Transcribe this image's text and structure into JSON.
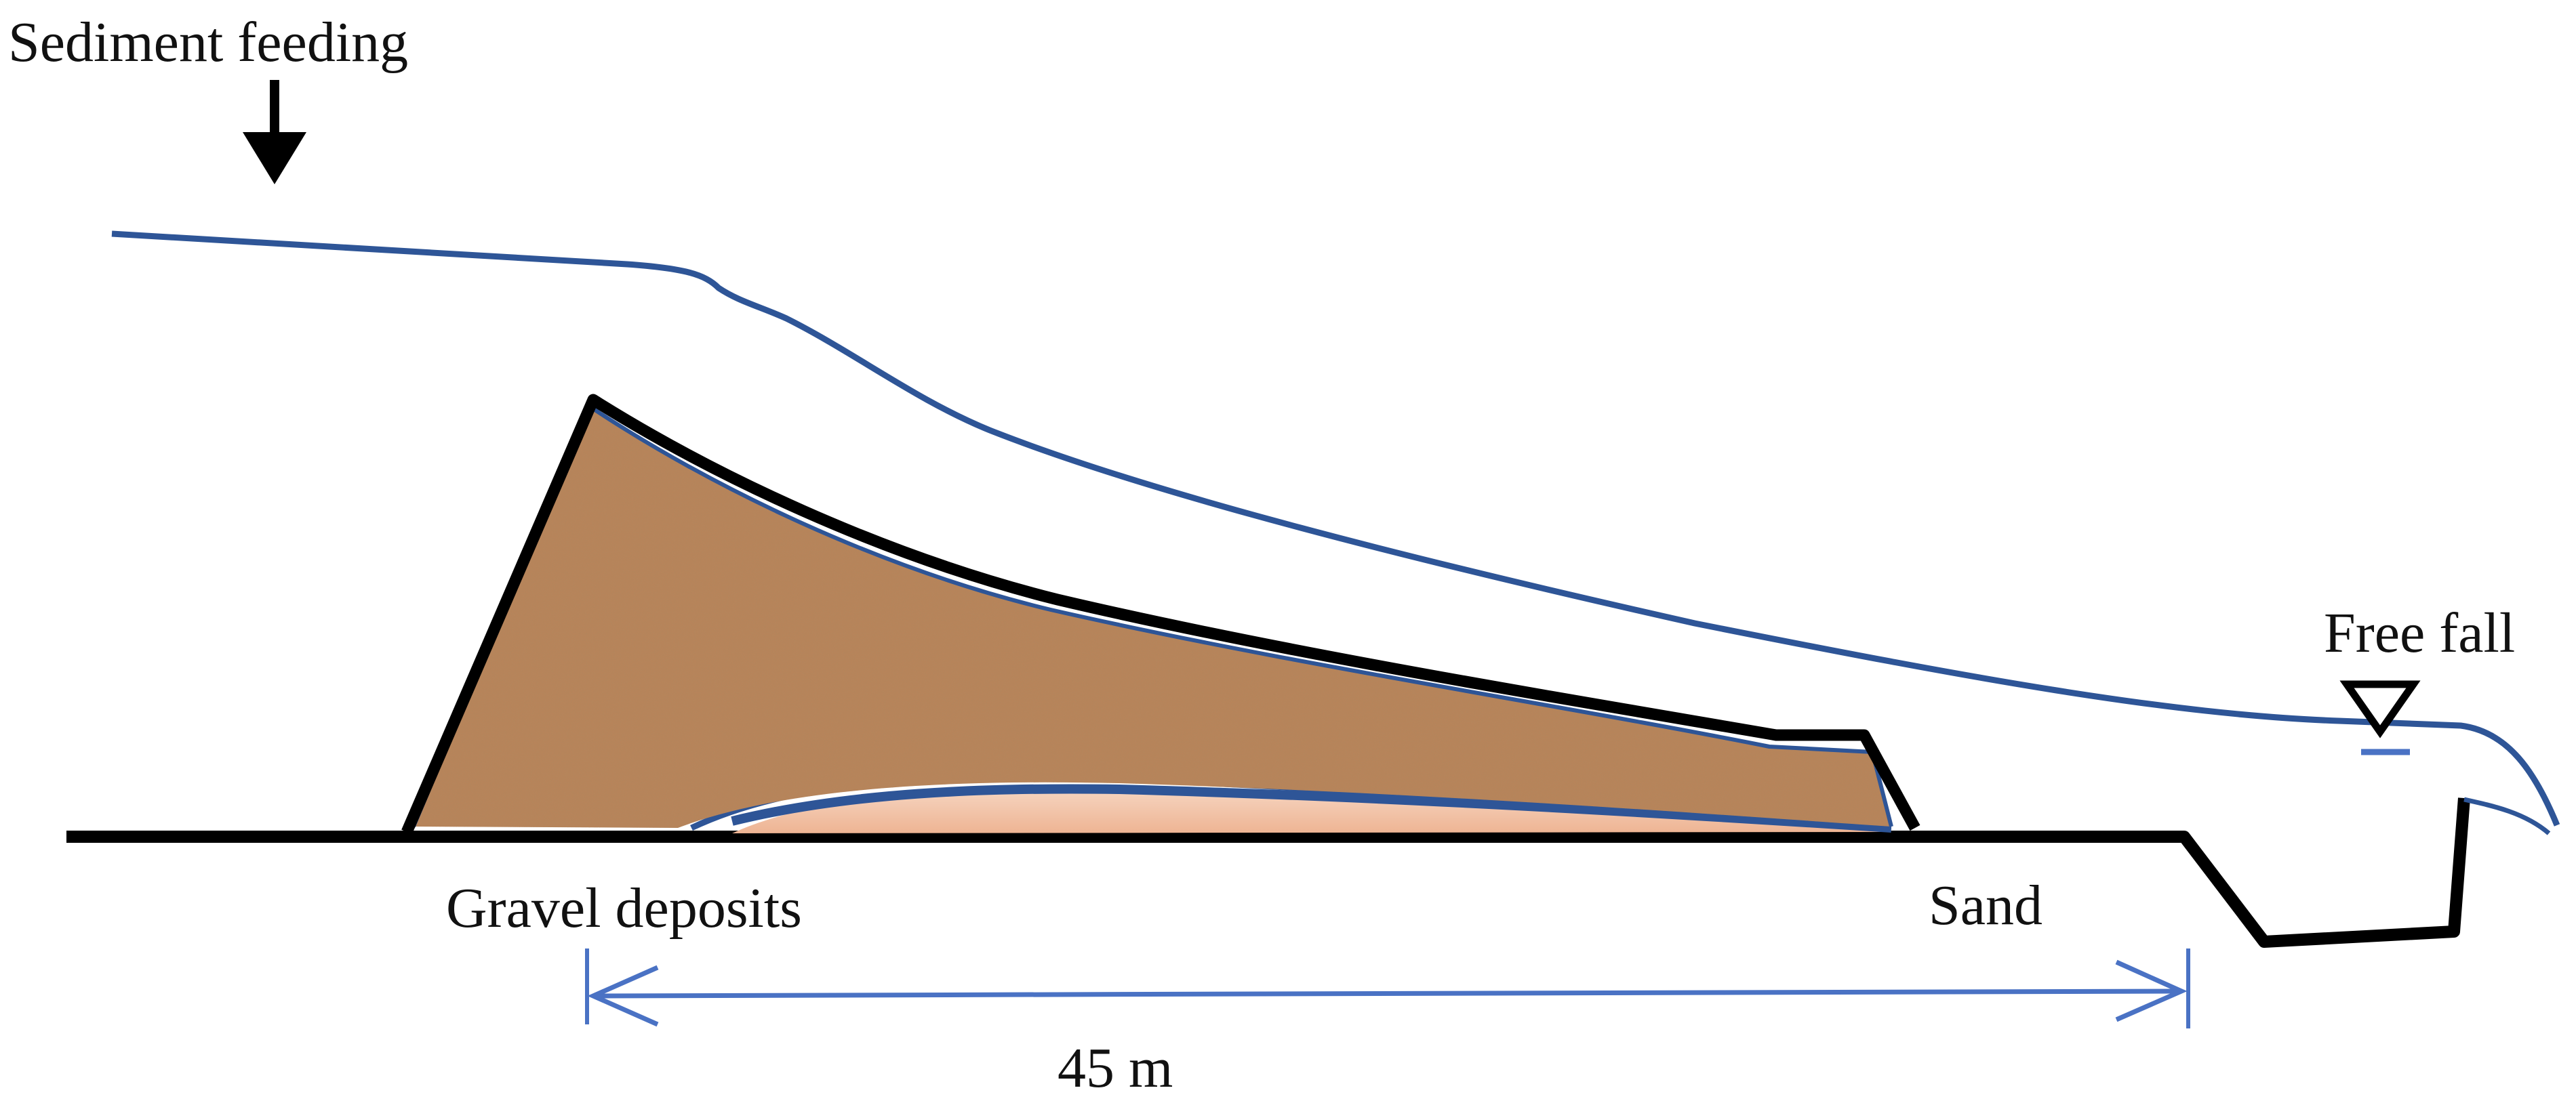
{
  "labels": {
    "sediment_feeding": "Sediment feeding",
    "free_fall": "Free fall",
    "gravel_deposits": "Gravel deposits",
    "sand": "Sand",
    "distance": "45 m"
  },
  "colors": {
    "outline": "#000000",
    "water_surface": "#2e5597",
    "dimension": "#4a72c4",
    "gravel_fill": "#b7845a",
    "gravel_speckle": "#6e3d1d",
    "sand_fill": "#f3c6ad"
  },
  "icons": {
    "feed_arrow": "down-arrow-icon",
    "water_level": "water-level-triangle-icon"
  }
}
